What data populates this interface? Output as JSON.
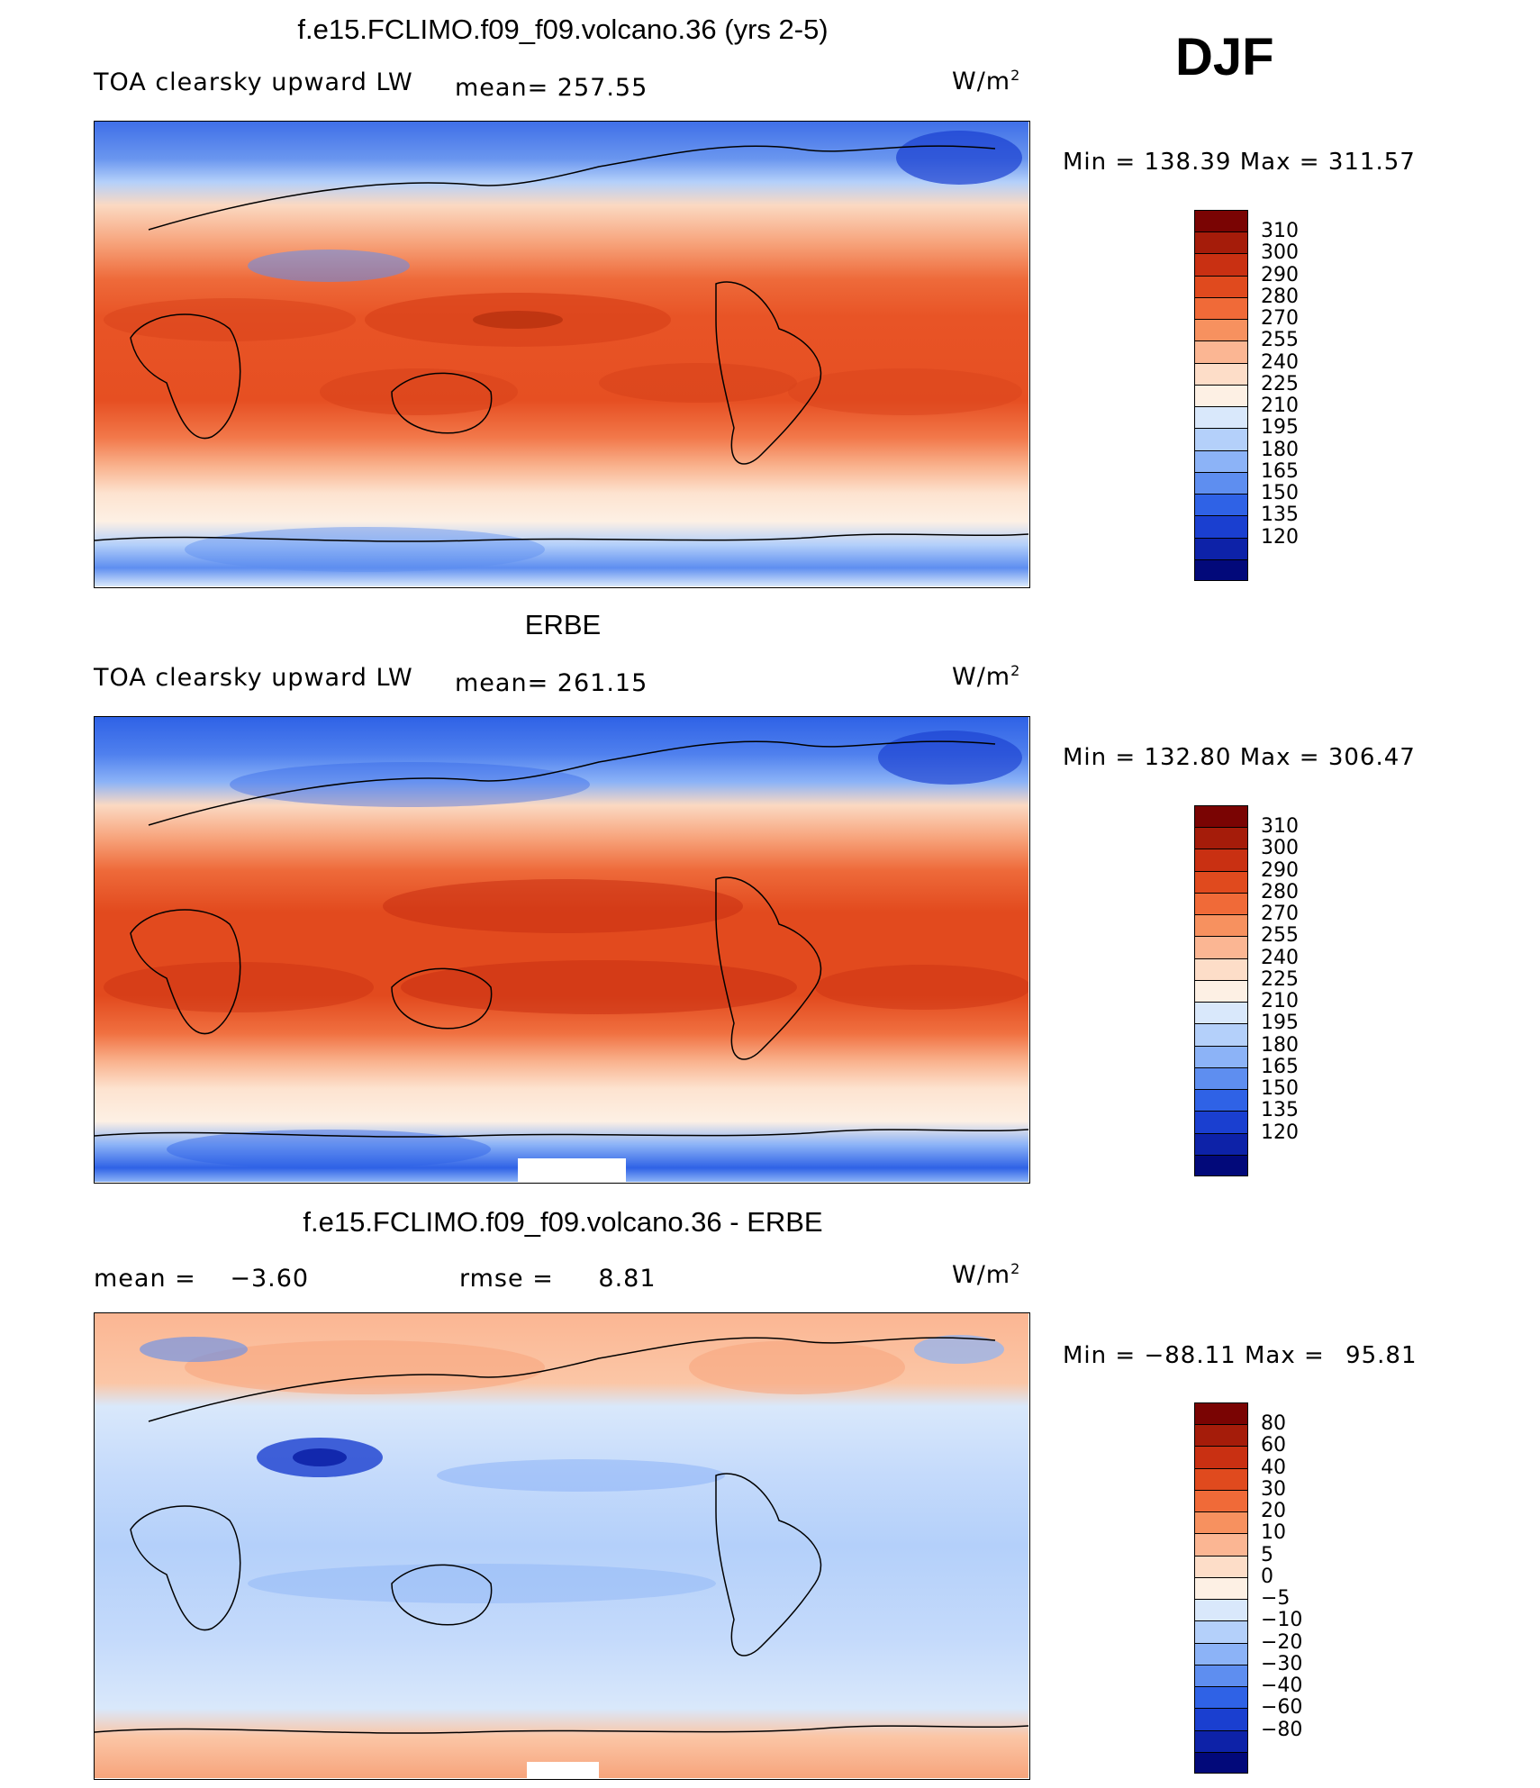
{
  "season": "DJF",
  "units": "W/m",
  "units_sup": "2",
  "panels": [
    {
      "title": "f.e15.FCLIMO.f09_f09.volcano.36 (yrs 2-5)",
      "left_label": "TOA clearsky upward LW",
      "stat1_label": "mean=",
      "stat1_value": "257.55",
      "stat2_label": "",
      "stat2_value": "",
      "min_label": "Min",
      "min_value": "138.39",
      "max_label": "Max",
      "max_value": "311.57"
    },
    {
      "title": "ERBE",
      "left_label": "TOA clearsky upward LW",
      "stat1_label": "mean=",
      "stat1_value": "261.15",
      "stat2_label": "",
      "stat2_value": "",
      "min_label": "Min",
      "min_value": "132.80",
      "max_label": "Max",
      "max_value": "306.47"
    },
    {
      "title": "f.e15.FCLIMO.f09_f09.volcano.36 - ERBE",
      "left_label": "",
      "stat1_label": "mean =",
      "stat1_value": "−3.60",
      "stat2_label": "rmse =",
      "stat2_value": "8.81",
      "min_label": "Min",
      "min_value": "−88.11",
      "max_label": "Max",
      "max_value": "95.81"
    }
  ],
  "chart_data": [
    {
      "type": "heatmap",
      "title": "f.e15.FCLIMO.f09_f09.volcano.36 (yrs 2-5)",
      "variable": "TOA clearsky upward LW",
      "units": "W/m2",
      "mean": 257.55,
      "min": 138.39,
      "max": 311.57,
      "colorbar_levels": [
        310,
        300,
        290,
        280,
        270,
        255,
        240,
        225,
        210,
        195,
        180,
        165,
        150,
        135,
        120
      ],
      "colorbar_colors": [
        "#7a0403",
        "#a51c0a",
        "#c93012",
        "#e04a1e",
        "#f06a38",
        "#f7915f",
        "#fbb693",
        "#fdddc8",
        "#fdf0e4",
        "#d9e8fb",
        "#b4d0fa",
        "#8cb3f7",
        "#5e8ef0",
        "#2f62e6",
        "#1a3fd0",
        "#0d22a8",
        "#02097a"
      ]
    },
    {
      "type": "heatmap",
      "title": "ERBE",
      "variable": "TOA clearsky upward LW",
      "units": "W/m2",
      "mean": 261.15,
      "min": 132.8,
      "max": 306.47,
      "colorbar_levels": [
        310,
        300,
        290,
        280,
        270,
        255,
        240,
        225,
        210,
        195,
        180,
        165,
        150,
        135,
        120
      ],
      "colorbar_colors": [
        "#7a0403",
        "#a51c0a",
        "#c93012",
        "#e04a1e",
        "#f06a38",
        "#f7915f",
        "#fbb693",
        "#fdddc8",
        "#fdf0e4",
        "#d9e8fb",
        "#b4d0fa",
        "#8cb3f7",
        "#5e8ef0",
        "#2f62e6",
        "#1a3fd0",
        "#0d22a8",
        "#02097a"
      ]
    },
    {
      "type": "heatmap",
      "title": "f.e15.FCLIMO.f09_f09.volcano.36 - ERBE",
      "units": "W/m2",
      "mean": -3.6,
      "rmse": 8.81,
      "min": -88.11,
      "max": 95.81,
      "colorbar_levels": [
        "80",
        "60",
        "40",
        "30",
        "20",
        "10",
        "5",
        "0",
        "−5",
        "−10",
        "−20",
        "−30",
        "−40",
        "−60",
        "−80"
      ],
      "colorbar_colors": [
        "#7a0403",
        "#a51c0a",
        "#c93012",
        "#e04a1e",
        "#f06a38",
        "#f7915f",
        "#fbb693",
        "#fdddc8",
        "#fdf0e4",
        "#d9e8fb",
        "#b4d0fa",
        "#8cb3f7",
        "#5e8ef0",
        "#2f62e6",
        "#1a3fd0",
        "#0d22a8",
        "#02097a"
      ]
    }
  ]
}
